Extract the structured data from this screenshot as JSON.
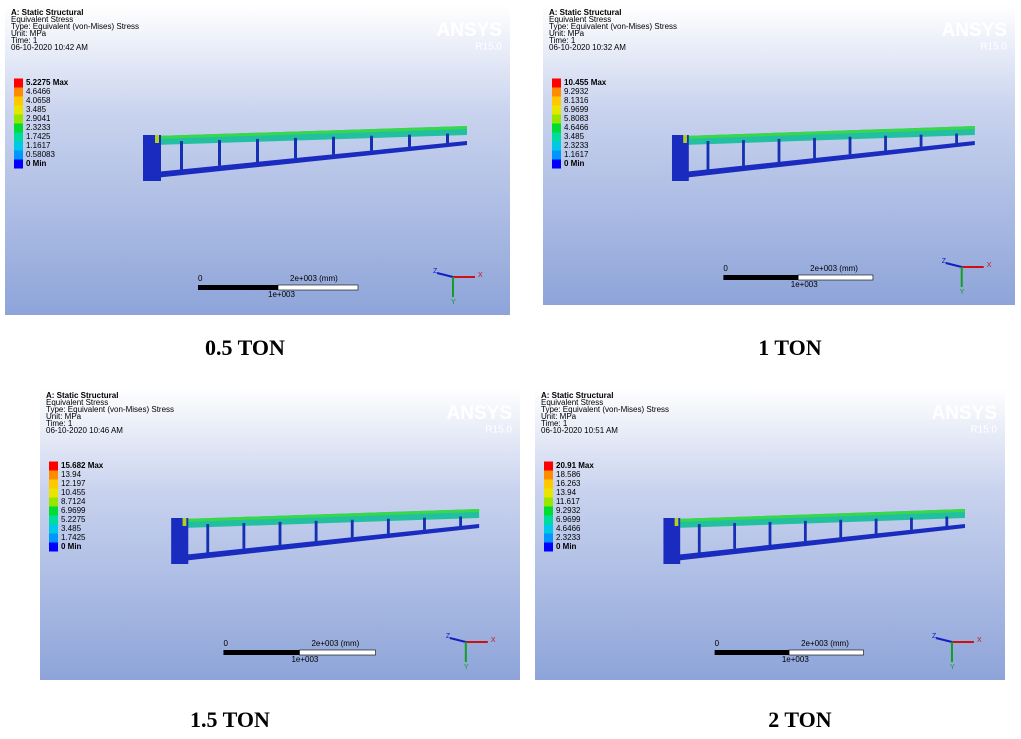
{
  "panels": [
    {
      "title": "A: Static Structural",
      "lines": [
        "Equivalent Stress",
        "Type: Equivalent (von-Mises) Stress",
        "Unit: MPa",
        "Time: 1",
        "06-10-2020 10:42 AM"
      ],
      "legend": [
        "5.2275 Max",
        "4.6466",
        "4.0658",
        "3.485",
        "2.9041",
        "2.3233",
        "1.7425",
        "1.1617",
        "0.58083",
        "0 Min"
      ],
      "logo": "ANSYS",
      "version": "R15.0",
      "scale": [
        "0",
        "2e+003 (mm)",
        "1e+003"
      ],
      "axes": [
        "Z",
        "X",
        "Y"
      ],
      "caption": "0.5 TON"
    },
    {
      "title": "A: Static Structural",
      "lines": [
        "Equivalent Stress",
        "Type: Equivalent (von-Mises) Stress",
        "Unit: MPa",
        "Time: 1",
        "06-10-2020 10:32 AM"
      ],
      "legend": [
        "10.455 Max",
        "9.2932",
        "8.1316",
        "6.9699",
        "5.8083",
        "4.6466",
        "3.485",
        "2.3233",
        "1.1617",
        "0 Min"
      ],
      "logo": "ANSYS",
      "version": "R15.0",
      "scale": [
        "0",
        "2e+003 (mm)",
        "1e+003"
      ],
      "axes": [
        "Z",
        "X",
        "Y"
      ],
      "caption": "1 TON"
    },
    {
      "title": "A: Static Structural",
      "lines": [
        "Equivalent Stress",
        "Type: Equivalent (von-Mises) Stress",
        "Unit: MPa",
        "Time: 1",
        "06-10-2020 10:46 AM"
      ],
      "legend": [
        "15.682 Max",
        "13.94",
        "12.197",
        "10.455",
        "8.7124",
        "6.9699",
        "5.2275",
        "3.485",
        "1.7425",
        "0 Min"
      ],
      "logo": "ANSYS",
      "version": "R15.0",
      "scale": [
        "0",
        "2e+003 (mm)",
        "1e+003"
      ],
      "axes": [
        "Z",
        "X",
        "Y"
      ],
      "caption": "1.5 TON"
    },
    {
      "title": "A: Static Structural",
      "lines": [
        "Equivalent Stress",
        "Type: Equivalent (von-Mises) Stress",
        "Unit: MPa",
        "Time: 1",
        "06-10-2020 10:51 AM"
      ],
      "legend": [
        "20.91 Max",
        "18.586",
        "16.263",
        "13.94",
        "11.617",
        "9.2932",
        "6.9699",
        "4.6466",
        "2.3233",
        "0 Min"
      ],
      "logo": "ANSYS",
      "version": "R15.0",
      "scale": [
        "0",
        "2e+003 (mm)",
        "1e+003"
      ],
      "axes": [
        "Z",
        "X",
        "Y"
      ],
      "caption": "2 TON"
    }
  ]
}
